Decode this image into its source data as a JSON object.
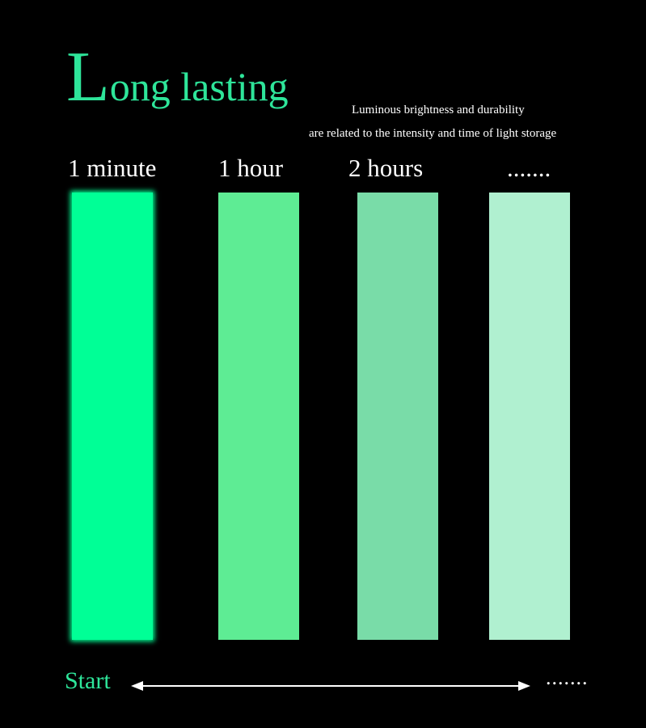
{
  "title": {
    "initial": "L",
    "rest": "ong lasting"
  },
  "subtitle": {
    "line1": "Luminous brightness and durability",
    "line2": "are related to the intensity and time of light storage"
  },
  "stages": [
    {
      "label": "1 minute",
      "color": "#00ff96"
    },
    {
      "label": "1 hour",
      "color": "#5eec94"
    },
    {
      "label": "2 hours",
      "color": "#79dca8"
    },
    {
      "label": ".......",
      "color": "#b0f0d0"
    }
  ],
  "timeline": {
    "start_label": "Start",
    "end_label": "......."
  },
  "colors": {
    "accent": "#2ee59a",
    "background": "#000000"
  }
}
